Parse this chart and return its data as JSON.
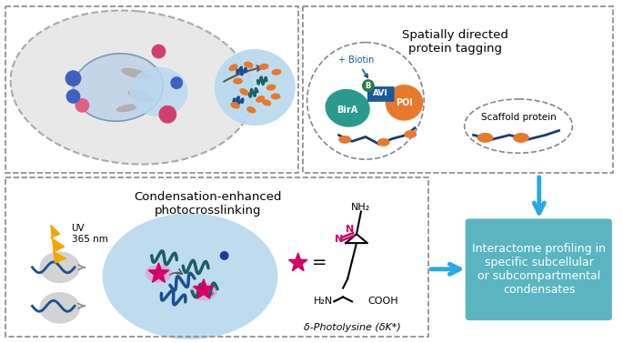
{
  "fig_width": 6.85,
  "fig_height": 3.77,
  "bg_color": "#ffffff",
  "arrow_color": "#29aae2",
  "box_bg_color": "#5ab5c0",
  "box_text_color": "#ffffff",
  "box_text": "Interactome profiling in\nspecific subcellular\nor subcompartmental\ncondensates",
  "spatially_title": "Spatially directed\nprotein tagging",
  "condensation_title": "Condensation-enhanced\nphotocrosslinking",
  "uv_text": "UV\n365 nm",
  "biotin_text": "+ Biotin",
  "bira_text": "BirA",
  "avi_text": "AVI",
  "b_text": "B",
  "poi_text": "POI",
  "scaffold_text": "Scaffold protein",
  "delta_photolysine_text": "δ-Photolysine (δK*)",
  "nh2_text": "NH₂",
  "cooh_text": "COOH",
  "h2n_text": "H₂N",
  "n_text": "N",
  "dashed_gray": "#888888",
  "cell_fill": "#e8e8e8",
  "cell_stroke": "#aaaaaa",
  "nucleus_fill": "#c5d5e8",
  "condensate_blue_light": "#b8d9ee",
  "condensate_blue": "#7ab8d4",
  "orange_color": "#e8792a",
  "teal_color": "#2a9a8c",
  "navy_blue": "#1a3a7a",
  "dark_teal": "#1a6060",
  "pink_star": "#d4006a",
  "pink_star2": "#e0006a",
  "pink_magenta": "#cc0066",
  "gray_blob": "#c0c0c0",
  "yellow_lightning": "#f5a500",
  "blue_arrow_color": "#29aae2",
  "bira_color": "#2a9a8c",
  "poi_color": "#e8792a",
  "b_box_color": "#1a5a9a",
  "biotin_arrow_color": "#1a5a9a"
}
